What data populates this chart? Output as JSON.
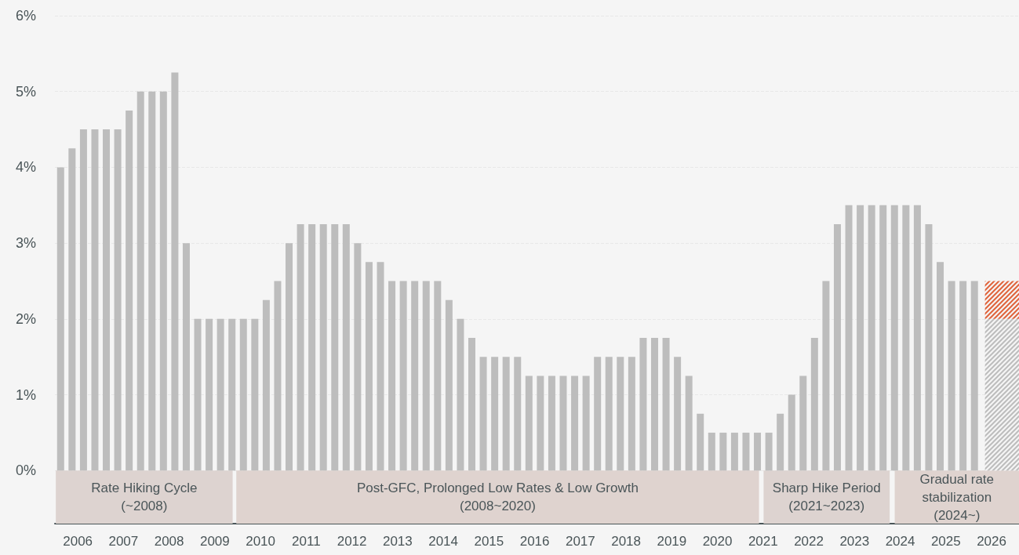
{
  "chart_data": {
    "type": "bar",
    "x": [
      2005.625,
      2005.875,
      2006.125,
      2006.375,
      2006.625,
      2006.875,
      2007.125,
      2007.375,
      2007.625,
      2007.875,
      2008.125,
      2008.375,
      2008.625,
      2008.875,
      2009.125,
      2009.375,
      2009.625,
      2009.875,
      2010.125,
      2010.375,
      2010.625,
      2010.875,
      2011.125,
      2011.375,
      2011.625,
      2011.875,
      2012.125,
      2012.375,
      2012.625,
      2012.875,
      2013.125,
      2013.375,
      2013.625,
      2013.875,
      2014.125,
      2014.375,
      2014.625,
      2014.875,
      2015.125,
      2015.375,
      2015.625,
      2015.875,
      2016.125,
      2016.375,
      2016.625,
      2016.875,
      2017.125,
      2017.375,
      2017.625,
      2017.875,
      2018.125,
      2018.375,
      2018.625,
      2018.875,
      2019.125,
      2019.375,
      2019.625,
      2019.875,
      2020.125,
      2020.375,
      2020.625,
      2020.875,
      2021.125,
      2021.375,
      2021.625,
      2021.875,
      2022.125,
      2022.375,
      2022.625,
      2022.875,
      2023.125,
      2023.375,
      2023.625,
      2023.875,
      2024.125,
      2024.375,
      2024.625,
      2024.875,
      2025.125,
      2025.375,
      2025.625,
      2026.25
    ],
    "series": [
      {
        "color": "#bdbdbd",
        "values": [
          4.0,
          4.25,
          4.5,
          4.5,
          4.5,
          4.5,
          4.75,
          5.0,
          5.0,
          5.0,
          5.25,
          3.0,
          2.0,
          2.0,
          2.0,
          2.0,
          2.0,
          2.0,
          2.25,
          2.5,
          3.0,
          3.25,
          3.25,
          3.25,
          3.25,
          3.25,
          3.0,
          2.75,
          2.75,
          2.5,
          2.5,
          2.5,
          2.5,
          2.5,
          2.25,
          2.0,
          1.75,
          1.5,
          1.5,
          1.5,
          1.5,
          1.25,
          1.25,
          1.25,
          1.25,
          1.25,
          1.25,
          1.5,
          1.5,
          1.5,
          1.5,
          1.75,
          1.75,
          1.75,
          1.5,
          1.25,
          0.75,
          0.5,
          0.5,
          0.5,
          0.5,
          0.5,
          0.5,
          0.75,
          1.0,
          1.25,
          1.75,
          2.5,
          3.25,
          3.5,
          3.5,
          3.5,
          3.5,
          3.5,
          3.5,
          3.5,
          3.25,
          2.75,
          2.5,
          2.5,
          2.5,
          null
        ]
      },
      {
        "color": "#bdbdbd",
        "values": [
          null,
          null,
          null,
          null,
          null,
          null,
          null,
          null,
          null,
          null,
          null,
          null,
          null,
          null,
          null,
          null,
          null,
          null,
          null,
          null,
          null,
          null,
          null,
          null,
          null,
          null,
          null,
          null,
          null,
          null,
          null,
          null,
          null,
          null,
          null,
          null,
          null,
          null,
          null,
          null,
          null,
          null,
          null,
          null,
          null,
          null,
          null,
          null,
          null,
          null,
          null,
          null,
          null,
          null,
          null,
          null,
          null,
          null,
          null,
          null,
          null,
          null,
          null,
          null,
          null,
          null,
          null,
          null,
          null,
          null,
          null,
          null,
          null,
          null,
          null,
          null,
          null,
          null,
          null,
          null,
          null,
          2.0
        ]
      },
      {
        "color": "#e0643c",
        "values": [
          null,
          null,
          null,
          null,
          null,
          null,
          null,
          null,
          null,
          null,
          null,
          null,
          null,
          null,
          null,
          null,
          null,
          null,
          null,
          null,
          null,
          null,
          null,
          null,
          null,
          null,
          null,
          null,
          null,
          null,
          null,
          null,
          null,
          null,
          null,
          null,
          null,
          null,
          null,
          null,
          null,
          null,
          null,
          null,
          null,
          null,
          null,
          null,
          null,
          null,
          null,
          null,
          null,
          null,
          null,
          null,
          null,
          null,
          null,
          null,
          null,
          null,
          null,
          null,
          null,
          null,
          null,
          null,
          null,
          null,
          null,
          null,
          null,
          null,
          null,
          null,
          null,
          null,
          null,
          null,
          null,
          0.5
        ]
      }
    ],
    "stacked": true,
    "xlim": [
      2005.5,
      2026.6
    ],
    "xticks": [
      2006,
      2007,
      2008,
      2009,
      2010,
      2011,
      2012,
      2013,
      2014,
      2015,
      2016,
      2017,
      2018,
      2019,
      2020,
      2021,
      2022,
      2023,
      2024,
      2025,
      2026
    ],
    "ylim": [
      -0.7,
      6
    ],
    "yticks": [
      {
        "value": 0,
        "label": "0%"
      },
      {
        "value": 1,
        "label": "1%"
      },
      {
        "value": 2,
        "label": "2%"
      },
      {
        "value": 3,
        "label": "3%"
      },
      {
        "value": 4,
        "label": "4%"
      },
      {
        "value": 5,
        "label": "5%"
      },
      {
        "value": 6,
        "label": "6%"
      }
    ],
    "grid": "y",
    "bands": [
      {
        "axis": "x",
        "from": 2005.52,
        "to": 2009.39,
        "label": "Rate Hiking Cycle\n(~2008)",
        "color": "#ddd3d0"
      },
      {
        "axis": "x",
        "from": 2009.47,
        "to": 2020.91,
        "label": "Post-GFC, Prolonged Low Rates & Low Growth\n(2008~2020)",
        "color": "#dfd3cf"
      },
      {
        "axis": "x",
        "from": 2021.01,
        "to": 2023.77,
        "label": "Sharp Hike Period\n(2021~2023)",
        "color": "#ddd3d0"
      },
      {
        "axis": "x",
        "from": 2023.88,
        "to": 2026.6,
        "label": "Gradual rate\nstabilization\n(2024~)",
        "color": "#dfd3cf"
      }
    ]
  }
}
